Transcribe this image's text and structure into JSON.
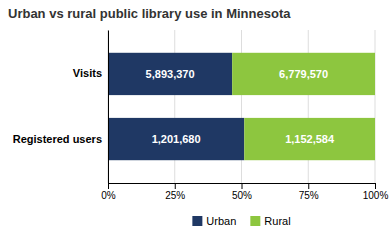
{
  "chart_data": {
    "type": "bar",
    "title": "Urban vs rural public library use in Minnesota",
    "orientation": "horizontal",
    "stacked": true,
    "categories": [
      "Visits",
      "Registered users"
    ],
    "series": [
      {
        "name": "Urban",
        "color": "#1F3864",
        "values": [
          46.5036,
          51.0427
        ],
        "counts": [
          5893370,
          1201680
        ],
        "count_labels": [
          "5,893,370",
          "1,201,680"
        ]
      },
      {
        "name": "Rural",
        "color": "#8DC63F",
        "values": [
          53.4964,
          48.9573
        ],
        "counts": [
          6779570,
          1152584
        ],
        "count_labels": [
          "6,779,570",
          "1,152,584"
        ]
      }
    ],
    "xlim": [
      0,
      100
    ],
    "xticks": [
      {
        "value": 0,
        "label": "0%"
      },
      {
        "value": 25,
        "label": "25%"
      },
      {
        "value": 50,
        "label": "50%"
      },
      {
        "value": 75,
        "label": "75%"
      },
      {
        "value": 100,
        "label": "100%"
      }
    ],
    "grid": true,
    "legend": "bottom"
  }
}
